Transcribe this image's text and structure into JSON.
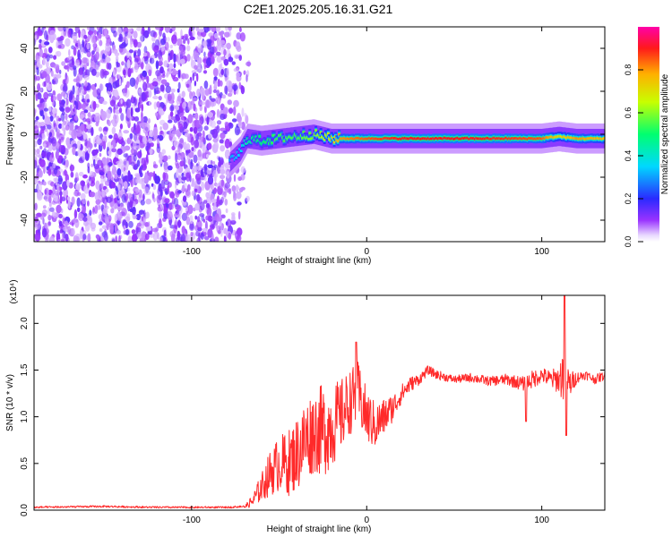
{
  "title": "C2E1.2025.205.16.31.G21",
  "colors": {
    "snr_line": "#ff2a2a",
    "scatter_purple": "#6a1cf0",
    "axes": "#000000",
    "background": "#ffffff"
  },
  "chart_data": [
    {
      "type": "heatmap",
      "xlabel": "Height of straight line (km)",
      "ylabel": "Frequency (Hz)",
      "xlim": [
        -190,
        136
      ],
      "ylim": [
        -50,
        50
      ],
      "xticks": [
        -100,
        0,
        100
      ],
      "yticks": [
        -40,
        -20,
        0,
        20,
        40
      ],
      "xticklabels": [
        "-100",
        "0",
        "100"
      ],
      "yticklabels": [
        "-40",
        "-20",
        "0",
        "20",
        "40"
      ],
      "colorbar": {
        "label": "Normalized spectral amplitude",
        "range": [
          0,
          1
        ],
        "ticks": [
          0.0,
          0.2,
          0.4,
          0.6,
          0.8
        ],
        "ticklabels": [
          "0.0",
          "0.2",
          "0.4",
          "0.6",
          "0.8"
        ],
        "colormap": "rainbow (white at 0, magenta at 1)"
      },
      "signal_trace": {
        "x": [
          -78,
          -72,
          -68,
          -60,
          -50,
          -40,
          -30,
          -20,
          -15,
          0,
          20,
          40,
          60,
          80,
          100,
          110,
          120,
          136
        ],
        "freq": [
          -13,
          -8,
          -2,
          -3,
          -2,
          -1,
          0,
          -2,
          -2,
          -2,
          -2,
          -2,
          -2,
          -2,
          -2,
          -1,
          -2,
          -2
        ],
        "amplitude": [
          0.3,
          0.35,
          0.45,
          0.5,
          0.55,
          0.55,
          0.6,
          0.7,
          0.8,
          0.85,
          0.9,
          0.9,
          0.9,
          0.88,
          0.85,
          0.7,
          0.8,
          0.75
        ]
      },
      "noise_region_x": [
        -190,
        -72
      ]
    },
    {
      "type": "line",
      "xlabel": "Height of straight line (km)",
      "ylabel": "SNR (10 * v/v)",
      "y_multiplier_label": "(x10⁴)",
      "xlim": [
        -190,
        136
      ],
      "ylim": [
        0,
        2.3
      ],
      "xticks": [
        -100,
        0,
        100
      ],
      "yticks": [
        0.0,
        0.5,
        1.0,
        1.5,
        2.0
      ],
      "xticklabels": [
        "-100",
        "0",
        "100"
      ],
      "yticklabels": [
        "0.0",
        "0.5",
        "1.0",
        "1.5",
        "2.0"
      ],
      "series": [
        {
          "x": [
            -190,
            -150,
            -120,
            -100,
            -80,
            -70,
            -65,
            -60,
            -55,
            -50,
            -45,
            -40,
            -35,
            -30,
            -25,
            -20,
            -15,
            -10,
            -5,
            0,
            5,
            10,
            15,
            20,
            25,
            30,
            35,
            40,
            50,
            60,
            70,
            80,
            90,
            95,
            100,
            105,
            110,
            112,
            114,
            116,
            120,
            125,
            130,
            136
          ],
          "y": [
            0.02,
            0.03,
            0.02,
            0.02,
            0.02,
            0.03,
            0.1,
            0.25,
            0.4,
            0.5,
            0.5,
            0.6,
            0.75,
            0.85,
            0.85,
            0.9,
            1.0,
            1.15,
            1.25,
            1.0,
            0.9,
            1.0,
            1.1,
            1.25,
            1.35,
            1.4,
            1.5,
            1.45,
            1.4,
            1.42,
            1.38,
            1.4,
            1.35,
            1.4,
            1.45,
            1.4,
            1.4,
            1.45,
            1.4,
            1.35,
            1.42,
            1.45,
            1.4,
            1.44
          ],
          "noise_amplitude": [
            0,
            0,
            0,
            0,
            0,
            0,
            0.08,
            0.15,
            0.25,
            0.3,
            0.35,
            0.4,
            0.45,
            0.45,
            0.5,
            0.45,
            0.4,
            0.35,
            0.35,
            0.3,
            0.25,
            0.2,
            0.15,
            0.1,
            0.08,
            0.06,
            0.05,
            0.05,
            0.04,
            0.05,
            0.05,
            0.06,
            0.08,
            0.1,
            0.08,
            0.1,
            0.15,
            0.3,
            0.2,
            0.15,
            0.06,
            0.05,
            0.05,
            0.05
          ],
          "peaks": [
            {
              "x": -6,
              "y": 1.8
            },
            {
              "x": 91,
              "y": 0.95
            },
            {
              "x": 113,
              "y": 2.35
            },
            {
              "x": 114,
              "y": 0.8
            }
          ]
        }
      ]
    }
  ]
}
